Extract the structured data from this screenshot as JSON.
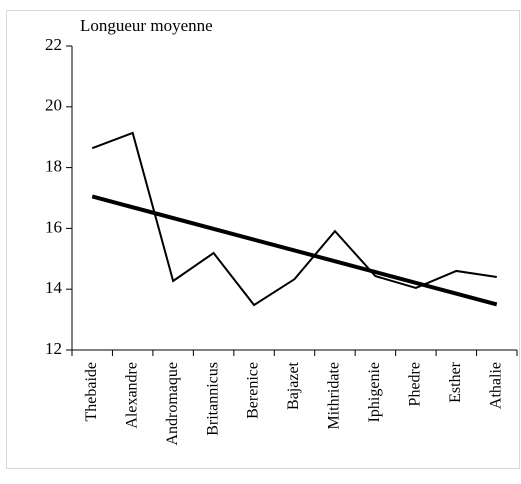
{
  "chart_data": {
    "type": "line",
    "title": "Longueur moyenne",
    "categories": [
      "Thebaide",
      "Alexandre",
      "Andromaque",
      "Britannicus",
      "Berenice",
      "Bajazet",
      "Mithridate",
      "Iphigenie",
      "Phedre",
      "Esther",
      "Athalie"
    ],
    "values": [
      18.64,
      19.14,
      14.27,
      15.19,
      13.48,
      14.33,
      15.91,
      14.43,
      14.04,
      14.6,
      14.4
    ],
    "color": "#000000",
    "trend": [
      17.05,
      13.5
    ],
    "ylim": [
      12,
      22
    ],
    "yticks": [
      12,
      14,
      16,
      18,
      20,
      22
    ],
    "grid": false
  }
}
